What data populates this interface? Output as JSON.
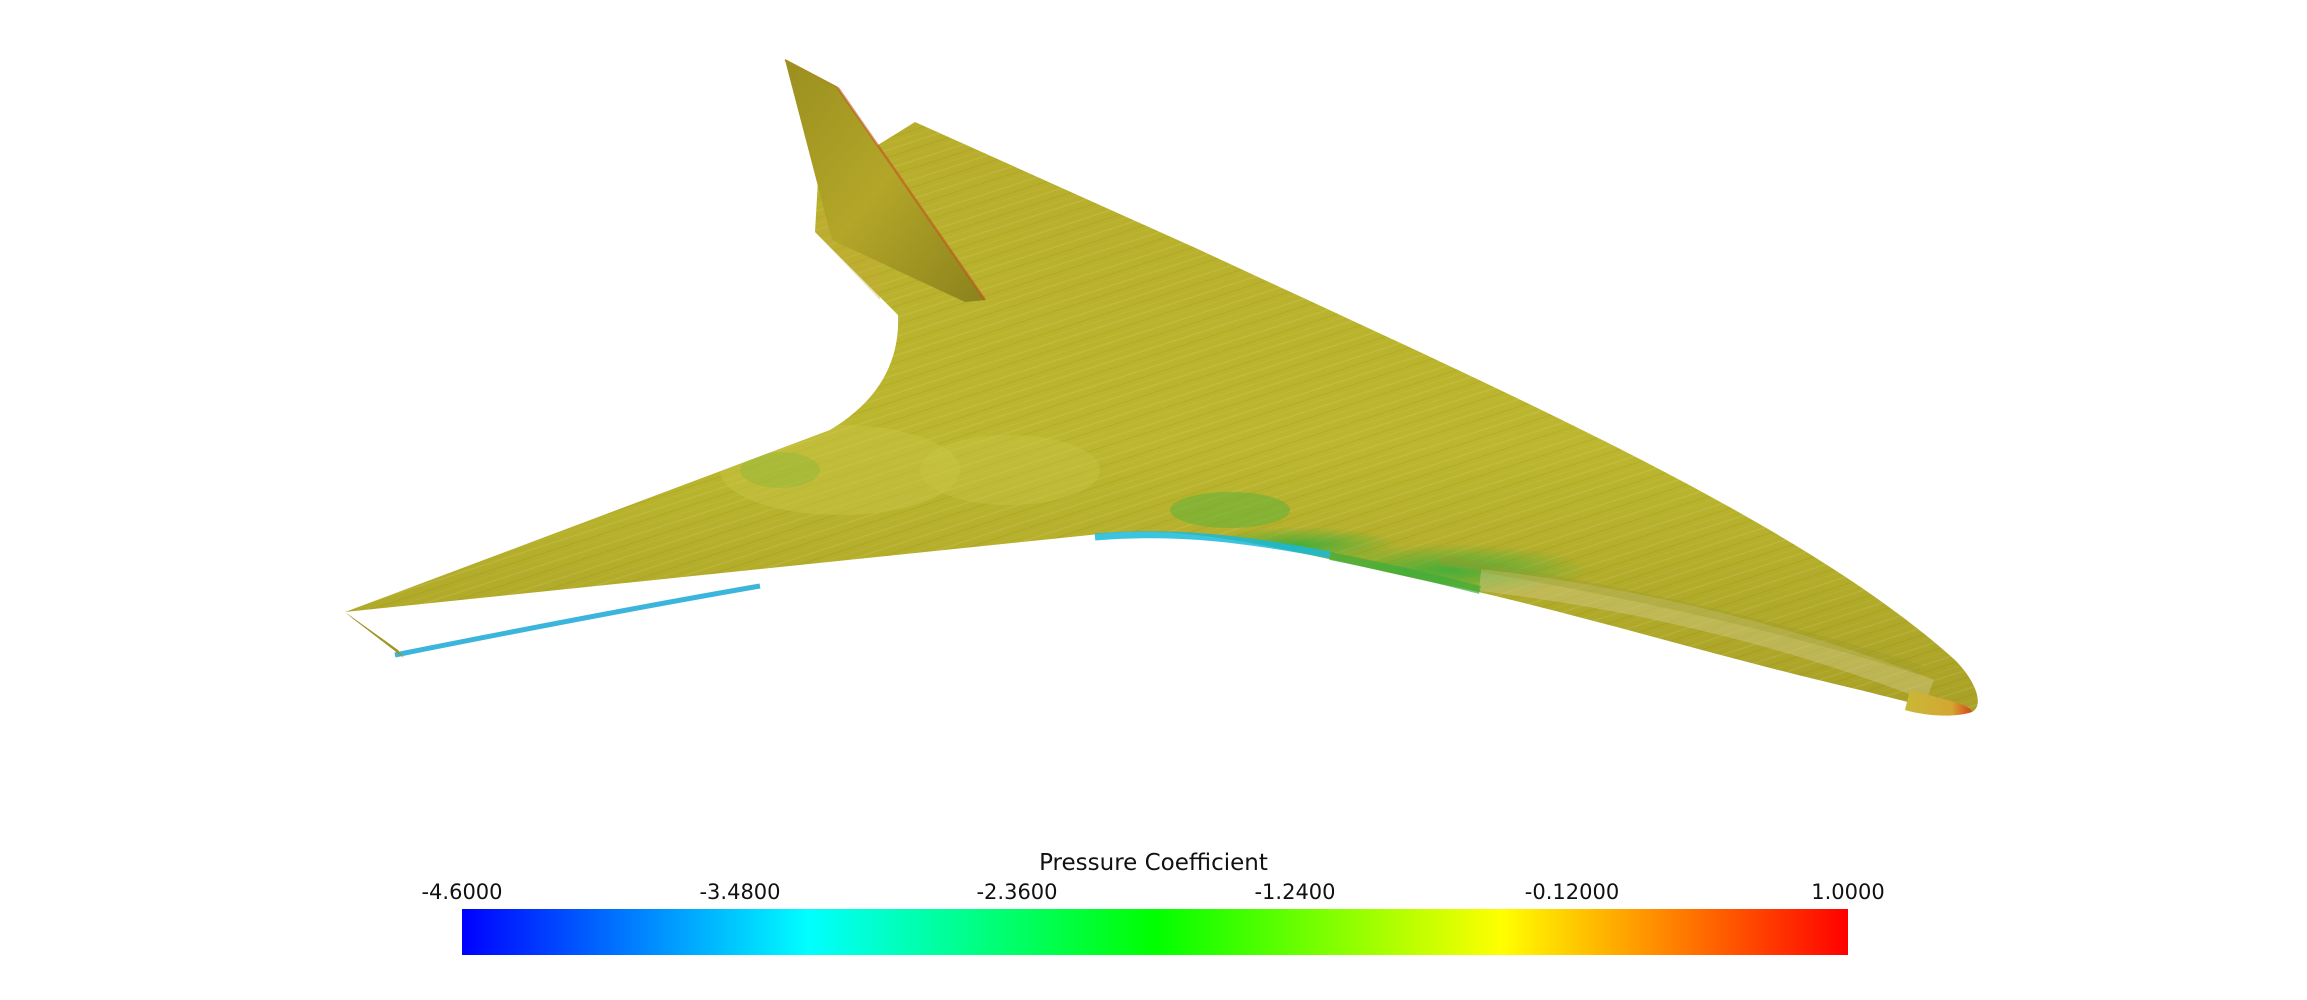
{
  "scene": {
    "object": "swept-wing-aircraft-surface",
    "rendering": "surface streamlines colored by pressure coefficient"
  },
  "colorbar": {
    "title": "Pressure Coefficient",
    "min": -4.6,
    "max": 1.0,
    "ticks": [
      "-4.6000",
      "-3.4800",
      "-2.3600",
      "-1.2400",
      "-0.12000",
      "1.0000"
    ],
    "colors": [
      "#0000ff",
      "#00ffff",
      "#00ff00",
      "#ffff00",
      "#ff0000"
    ]
  },
  "surface_colors": {
    "base": "#b8b22a",
    "light": "#c8c438",
    "dark": "#8e8a1e",
    "suction": "#1ab0d0",
    "mid_suction": "#4cb436",
    "stagnation": "#d8421c"
  }
}
